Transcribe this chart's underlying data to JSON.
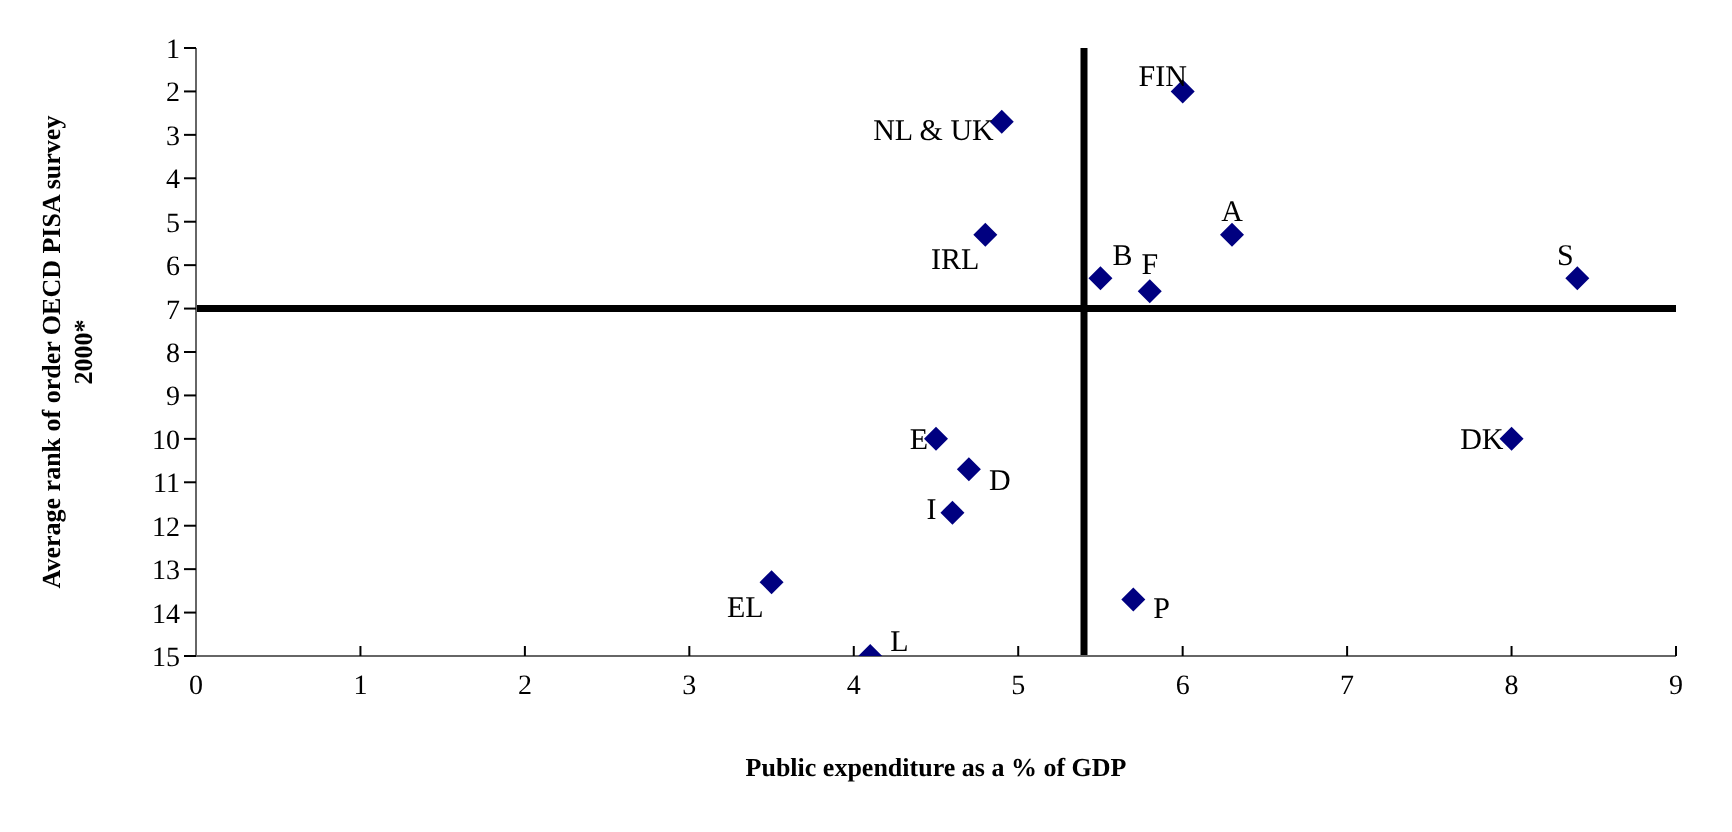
{
  "chart_data": {
    "type": "scatter",
    "xlabel": "Public expenditure as a % of GDP",
    "ylabel": "Average rank of order OECD PISA survey 2000*",
    "x": [
      6.0,
      4.9,
      6.3,
      4.8,
      5.5,
      5.8,
      8.4,
      4.5,
      4.7,
      8.0,
      4.6,
      5.7,
      3.5,
      4.1
    ],
    "series": [
      {
        "color": "#000080",
        "values": [
          2.0,
          2.7,
          5.3,
          5.3,
          6.3,
          6.6,
          6.3,
          10,
          10.7,
          10,
          11.7,
          13.7,
          13.3,
          15
        ]
      }
    ],
    "annotations": [
      {
        "text": "FIN",
        "x": 6.0,
        "y": 2.0
      },
      {
        "text": "NL & UK",
        "x": 4.9,
        "y": 2.7
      },
      {
        "text": "A",
        "x": 6.3,
        "y": 5.3
      },
      {
        "text": "IRL",
        "x": 4.8,
        "y": 5.3
      },
      {
        "text": "B",
        "x": 5.5,
        "y": 6.3
      },
      {
        "text": "F",
        "x": 5.8,
        "y": 6.6
      },
      {
        "text": "S",
        "x": 8.4,
        "y": 6.3
      },
      {
        "text": "E",
        "x": 4.5,
        "y": 10
      },
      {
        "text": "D",
        "x": 4.7,
        "y": 10.7
      },
      {
        "text": "DK",
        "x": 8.0,
        "y": 10
      },
      {
        "text": "I",
        "x": 4.6,
        "y": 11.7
      },
      {
        "text": "P",
        "x": 5.7,
        "y": 13.7
      },
      {
        "text": "EL",
        "x": 3.5,
        "y": 13.3
      },
      {
        "text": "L",
        "x": 4.1,
        "y": 15
      }
    ],
    "ref_lines": [
      {
        "axis": "x",
        "value": 5.4,
        "color": "#000000"
      },
      {
        "axis": "y",
        "value": 7,
        "color": "#000000"
      }
    ],
    "xlim": [
      0,
      9
    ],
    "xticks": [
      0,
      1,
      2,
      3,
      4,
      5,
      6,
      7,
      8,
      9
    ],
    "ylim": [
      15,
      1
    ],
    "yticks": [
      1,
      2,
      3,
      4,
      5,
      6,
      7,
      8,
      9,
      10,
      11,
      12,
      13,
      14,
      15
    ],
    "marker": "diamond",
    "grid": false,
    "legend": false
  }
}
